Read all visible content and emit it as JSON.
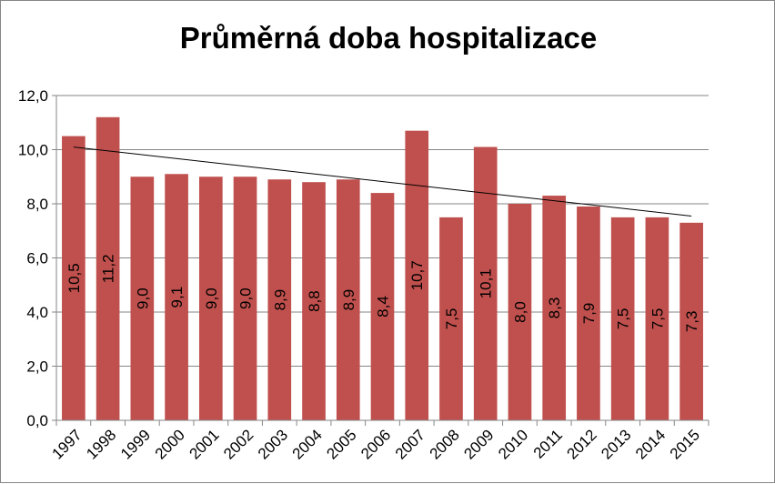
{
  "chart_data": {
    "type": "bar",
    "title": "Průměrná doba hospitalizace",
    "xlabel": "",
    "ylabel": "",
    "categories": [
      "1997",
      "1998",
      "1999",
      "2000",
      "2001",
      "2002",
      "2003",
      "2004",
      "2005",
      "2006",
      "2007",
      "2008",
      "2009",
      "2010",
      "2011",
      "2012",
      "2013",
      "2014",
      "2015"
    ],
    "series": [
      {
        "values": [
          10.5,
          11.2,
          9.0,
          9.1,
          9.0,
          9.0,
          8.9,
          8.8,
          8.9,
          8.4,
          10.7,
          7.5,
          10.1,
          8.0,
          8.3,
          7.9,
          7.5,
          7.5,
          7.3
        ],
        "data_labels": [
          "10,5",
          "11,2",
          "9,0",
          "9,1",
          "9,0",
          "9,0",
          "8,9",
          "8,8",
          "8,9",
          "8,4",
          "10,7",
          "7,5",
          "10,1",
          "8,0",
          "8,3",
          "7,9",
          "7,5",
          "7,5",
          "7,3"
        ],
        "color": "#C0504D"
      }
    ],
    "y_ticks": [
      "0,0",
      "2,0",
      "4,0",
      "6,0",
      "8,0",
      "10,0",
      "12,0"
    ],
    "ylim": [
      0,
      12
    ],
    "y_tick_step": 2,
    "grid": true,
    "legend": "none",
    "trendline": {
      "type": "linear",
      "color": "#000000"
    },
    "colors": {
      "bar": "#C0504D",
      "grid": "#868686",
      "axis": "#868686",
      "trendline": "#000000"
    }
  }
}
